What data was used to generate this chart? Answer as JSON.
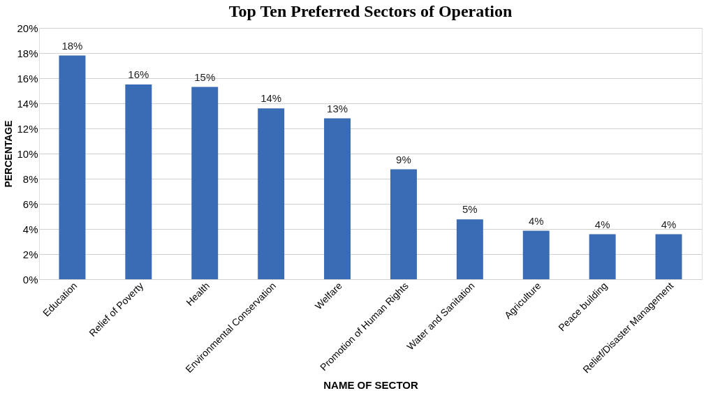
{
  "chart_data": {
    "type": "bar",
    "title": "Top Ten Preferred Sectors of Operation",
    "xlabel": "NAME OF SECTOR",
    "ylabel": "PERCENTAGE",
    "categories": [
      "Education",
      "Relief of Poverty",
      "Health",
      "Environmental Conservation",
      "Welfare",
      "Promotion of Human Rights",
      "Water and Sanitation",
      "Agriculture",
      "Peace building",
      "Relief/Disaster Management"
    ],
    "values": [
      17.8,
      15.5,
      15.3,
      13.6,
      12.8,
      8.75,
      4.76,
      3.86,
      3.58,
      3.58
    ],
    "value_labels": [
      "18%",
      "16%",
      "15%",
      "14%",
      "13%",
      "9%",
      "5%",
      "4%",
      "4%",
      "4%"
    ],
    "color": "#3a6bb5",
    "ylim": [
      0,
      20
    ],
    "yticks": [
      {
        "value": 0,
        "label": "0%"
      },
      {
        "value": 2,
        "label": "2%"
      },
      {
        "value": 4,
        "label": "4%"
      },
      {
        "value": 6,
        "label": "6%"
      },
      {
        "value": 8,
        "label": "8%"
      },
      {
        "value": 10,
        "label": "10%"
      },
      {
        "value": 12,
        "label": "12%"
      },
      {
        "value": 14,
        "label": "14%"
      },
      {
        "value": 16,
        "label": "16%"
      },
      {
        "value": 18,
        "label": "18%"
      },
      {
        "value": 20,
        "label": "20%"
      }
    ],
    "grid": "y"
  }
}
